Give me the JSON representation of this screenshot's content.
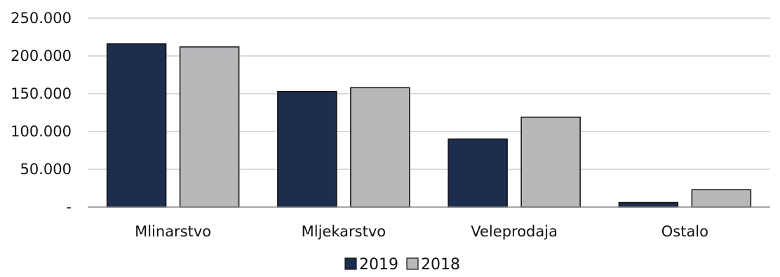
{
  "chart_data": {
    "type": "bar",
    "categories": [
      "Mlinarstvo",
      "Mljekarstvo",
      "Veleprodaja",
      "Ostalo"
    ],
    "series": [
      {
        "name": "2019",
        "values": [
          216000,
          153000,
          90000,
          6000
        ],
        "color": "#1d2d4d"
      },
      {
        "name": "2018",
        "values": [
          212000,
          158000,
          119000,
          23000
        ],
        "color": "#b7b8ba"
      }
    ],
    "y_ticks": [
      {
        "value": 0,
        "label": "-"
      },
      {
        "value": 50000,
        "label": "50.000"
      },
      {
        "value": 100000,
        "label": "100.000"
      },
      {
        "value": 150000,
        "label": "150.000"
      },
      {
        "value": 200000,
        "label": "200.000"
      },
      {
        "value": 250000,
        "label": "250.000"
      }
    ],
    "ylim": [
      0,
      250000
    ],
    "grid": true,
    "legend_position": "bottom-center",
    "title": "",
    "xlabel": "",
    "ylabel": ""
  }
}
